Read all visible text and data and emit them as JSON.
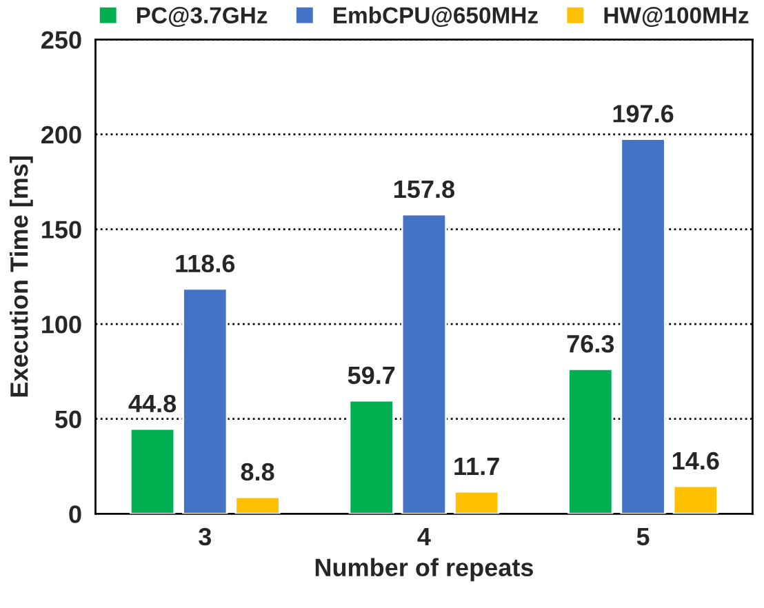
{
  "chart_data": {
    "type": "bar",
    "xlabel": "Number of repeats",
    "ylabel": "Execution Time [ms]",
    "categories": [
      "3",
      "4",
      "5"
    ],
    "series": [
      {
        "name": "PC@3.7GHz",
        "color": "#00b050",
        "values": [
          44.8,
          59.7,
          76.3
        ]
      },
      {
        "name": "EmbCPU@650MHz",
        "color": "#4472c4",
        "values": [
          118.6,
          157.8,
          197.6
        ]
      },
      {
        "name": "HW@100MHz",
        "color": "#ffc000",
        "values": [
          8.8,
          11.7,
          14.6
        ]
      }
    ],
    "ylim": [
      0,
      250
    ],
    "yticks": [
      0,
      50,
      100,
      150,
      200,
      250
    ],
    "grid": "y",
    "legend": "top",
    "data_labels": true
  }
}
